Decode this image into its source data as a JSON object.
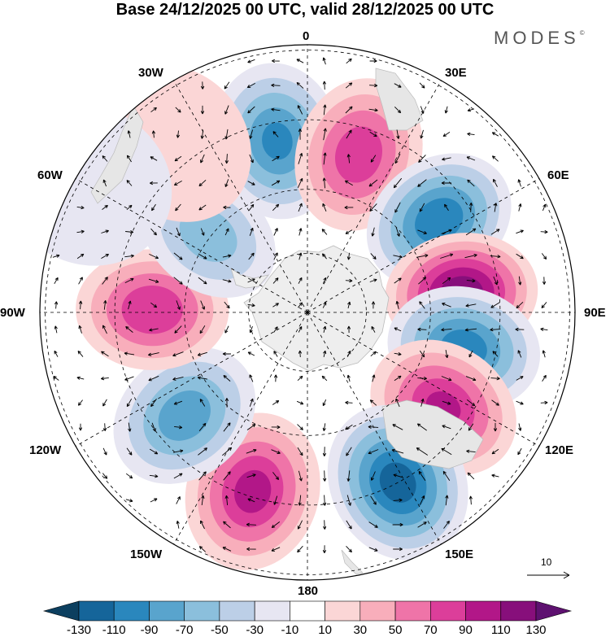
{
  "title": "Base 24/12/2025 00 UTC, valid 28/12/2025 00 UTC",
  "brand": {
    "name": "MODES",
    "mark": "©"
  },
  "longitude_labels": {
    "lon_0": "0",
    "lon_30e": "30E",
    "lon_60e": "60E",
    "lon_90e": "90E",
    "lon_120e": "120E",
    "lon_150e": "150E",
    "lon_180": "180",
    "lon_150w": "150W",
    "lon_120w": "120W",
    "lon_90w": "90W",
    "lon_60w": "60W",
    "lon_30w": "30W"
  },
  "vector_scale": {
    "value": "10"
  },
  "colorbar": {
    "tick_labels": [
      "-130",
      "-110",
      "-90",
      "-70",
      "-50",
      "-30",
      "-10",
      "10",
      "30",
      "50",
      "70",
      "90",
      "110",
      "130"
    ],
    "colors": [
      "#0c3f5f",
      "#15659a",
      "#2a87bd",
      "#59a4cd",
      "#8bbfdc",
      "#bccfe7",
      "#e7e6f2",
      "#ffffff",
      "#fbd6d6",
      "#f8aebb",
      "#ef74a8",
      "#dc3e9a",
      "#b21788",
      "#870f7b",
      "#5e1170"
    ]
  },
  "colors": {
    "land": "#eeeeee",
    "positive_core": "#870f7b",
    "negative_core": "#0c3f5f"
  },
  "map_data": {
    "projection": "south-polar-stereographic",
    "anomalies": [
      {
        "lon": 350,
        "r": 0.65,
        "value": -95
      },
      {
        "lon": 18,
        "r": 0.62,
        "value": 85
      },
      {
        "lon": 55,
        "r": 0.6,
        "value": -110
      },
      {
        "lon": 83,
        "r": 0.58,
        "value": 130
      },
      {
        "lon": 103,
        "r": 0.6,
        "value": -105
      },
      {
        "lon": 125,
        "r": 0.62,
        "value": 95
      },
      {
        "lon": 152,
        "r": 0.72,
        "value": -125
      },
      {
        "lon": 197,
        "r": 0.7,
        "value": 100
      },
      {
        "lon": 230,
        "r": 0.6,
        "value": -85
      },
      {
        "lon": 271,
        "r": 0.58,
        "value": 90
      },
      {
        "lon": 308,
        "r": 0.47,
        "value": -60
      },
      {
        "lon": 322,
        "r": 0.8,
        "value": 25
      },
      {
        "lon": 300,
        "r": 0.95,
        "value": -20
      }
    ]
  }
}
